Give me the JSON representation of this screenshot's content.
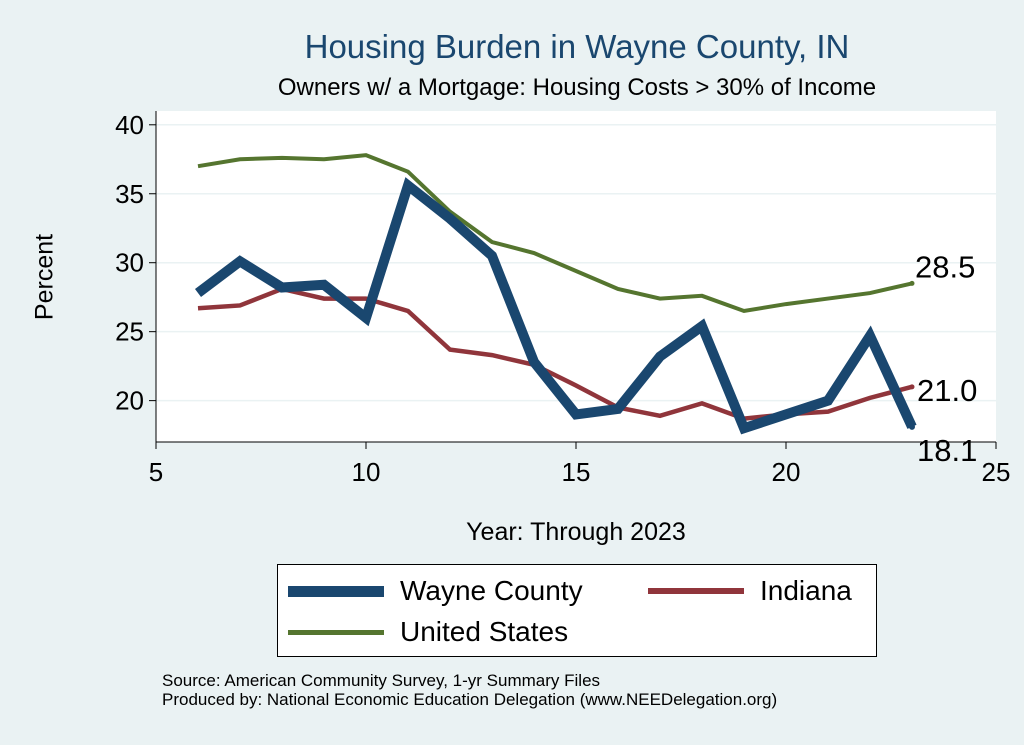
{
  "chart_data": {
    "type": "line",
    "title": "Housing Burden in Wayne County, IN",
    "subtitle": "Owners w/ a Mortgage: Housing Costs > 30% of Income",
    "xlabel": "Year: Through 2023",
    "ylabel": "Percent",
    "xlim": [
      5,
      25
    ],
    "ylim": [
      17,
      41
    ],
    "xticks": [
      5,
      10,
      15,
      20,
      25
    ],
    "yticks": [
      20,
      25,
      30,
      35,
      40
    ],
    "grid": true,
    "legend_position": "bottom",
    "x": [
      6,
      7,
      8,
      9,
      10,
      11,
      12,
      13,
      14,
      15,
      16,
      17,
      18,
      19,
      20,
      21,
      22,
      23
    ],
    "series": [
      {
        "name": "Wayne County",
        "color": "#1a476f",
        "values": [
          27.8,
          30.1,
          28.2,
          28.4,
          26.0,
          35.6,
          33.2,
          30.5,
          22.8,
          19.0,
          19.4,
          23.2,
          25.4,
          18.0,
          19.0,
          20.0,
          24.7,
          18.1
        ],
        "end_label": "18.1"
      },
      {
        "name": "Indiana",
        "color": "#90353b",
        "values": [
          26.7,
          26.9,
          28.1,
          27.4,
          27.4,
          26.5,
          23.7,
          23.3,
          22.6,
          21.1,
          19.5,
          18.9,
          19.8,
          18.7,
          19.0,
          19.2,
          20.2,
          21.0
        ],
        "end_label": "21.0"
      },
      {
        "name": "United States",
        "color": "#55752f",
        "values": [
          37.0,
          37.5,
          37.6,
          37.5,
          37.8,
          36.6,
          33.7,
          31.5,
          30.7,
          29.4,
          28.1,
          27.4,
          27.6,
          26.5,
          27.0,
          27.4,
          27.8,
          28.5
        ],
        "end_label": "28.5"
      }
    ]
  },
  "legend": {
    "wayne_label": "Wayne County",
    "indiana_label": "Indiana",
    "us_label": "United States"
  },
  "source": {
    "line1": "Source: American Community Survey, 1-yr Summary Files",
    "line2": "Produced by: National Economic Education Delegation (www.NEEDelegation.org)"
  }
}
